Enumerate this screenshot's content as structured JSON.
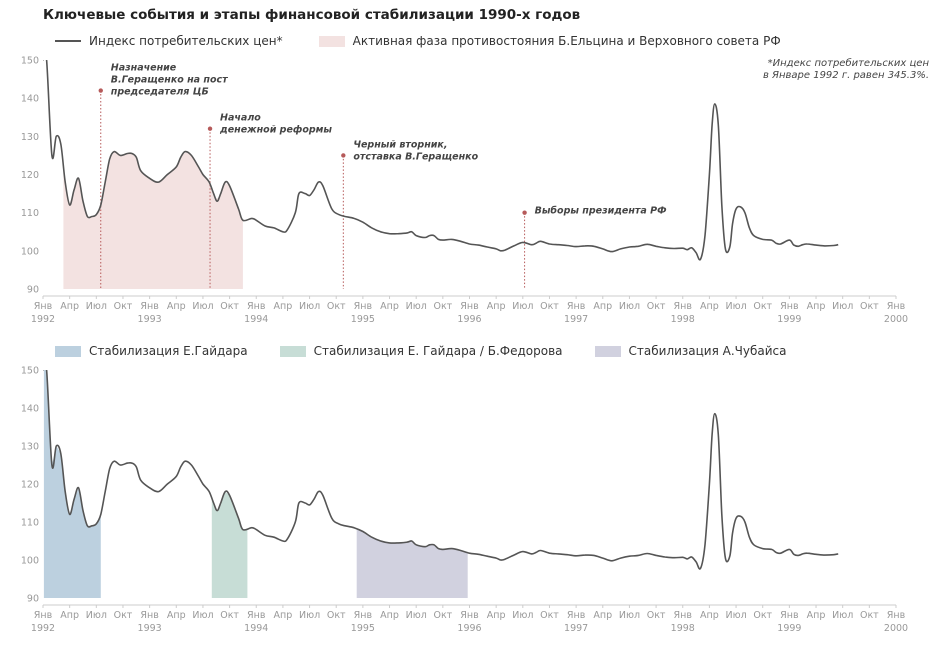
{
  "title": "Ключевые события и этапы финансовой стабилизации 1990-х годов",
  "footnote": [
    "*Индекс потребительских цен",
    "в Январе 1992 г. равен 345.3%."
  ],
  "colors": {
    "line": "#555555",
    "confrontation": "#f3e2e1",
    "gaidar": "#bcd0df",
    "gaidar_fedorov": "#c7ddd6",
    "chubais": "#d1d1df",
    "marker": "#b65a5a",
    "axis": "#cccccc"
  },
  "chart_data": [
    {
      "type": "line",
      "legend": [
        {
          "kind": "line",
          "label": "Индекс потребительских цен*",
          "color": "#555555"
        },
        {
          "kind": "area",
          "label": "Активная фаза противостояния Б.Ельцина и Верховного совета РФ",
          "color": "#f3e2e1"
        }
      ],
      "ylim": [
        90,
        150
      ],
      "yticks": [
        90,
        100,
        110,
        120,
        130,
        140,
        150
      ],
      "shaded_periods": [
        {
          "label": "Активная фаза противостояния Б.Ельцина и Верховного совета РФ",
          "start": 2.3,
          "end": 22.5,
          "color": "#f3e2e1"
        }
      ],
      "annotations": [
        {
          "x": 6.5,
          "label": [
            "Назначение",
            "В.Геращенко на пост",
            "председателя ЦБ"
          ],
          "y": 142
        },
        {
          "x": 18.8,
          "label": [
            "Начало",
            "денежной реформы"
          ],
          "y": 132
        },
        {
          "x": 33.8,
          "label": [
            "Черный вторник,",
            "отставка В.Геращенко"
          ],
          "y": 125
        },
        {
          "x": 54.2,
          "label": [
            "Выборы президента РФ"
          ],
          "y": 110
        }
      ]
    },
    {
      "type": "line",
      "legend": [
        {
          "kind": "area",
          "label": "Стабилизация Е.Гайдара",
          "color": "#bcd0df"
        },
        {
          "kind": "area",
          "label": "Стабилизация Е. Гайдара / Б.Федорова",
          "color": "#c7ddd6"
        },
        {
          "kind": "area",
          "label": "Стабилизация А.Чубайса",
          "color": "#d1d1df"
        }
      ],
      "ylim": [
        90,
        150
      ],
      "yticks": [
        90,
        100,
        110,
        120,
        130,
        140,
        150
      ],
      "shaded_periods": [
        {
          "label": "Стабилизация Е.Гайдара",
          "start": 0.1,
          "end": 6.5,
          "color": "#bcd0df"
        },
        {
          "label": "Стабилизация Е. Гайдара / Б.Федорова",
          "start": 19.0,
          "end": 23.0,
          "color": "#c7ddd6"
        },
        {
          "label": "Стабилизация А.Чубайса",
          "start": 35.3,
          "end": 47.8,
          "color": "#d1d1df"
        }
      ]
    }
  ],
  "series": {
    "name": "Индекс потребительских цен*",
    "x_unit": "months since Jan 1992",
    "values": [
      [
        0,
        345.3
      ],
      [
        0.4,
        150
      ],
      [
        1,
        125
      ],
      [
        1.5,
        130
      ],
      [
        2,
        128
      ],
      [
        2.5,
        118
      ],
      [
        3,
        112
      ],
      [
        3.5,
        116
      ],
      [
        4,
        119
      ],
      [
        4.5,
        113
      ],
      [
        5,
        109
      ],
      [
        5.5,
        109
      ],
      [
        6,
        109.5
      ],
      [
        6.5,
        112
      ],
      [
        7,
        118
      ],
      [
        7.5,
        124
      ],
      [
        8,
        126
      ],
      [
        8.7,
        125
      ],
      [
        9.5,
        125.5
      ],
      [
        10,
        125.5
      ],
      [
        10.5,
        124.5
      ],
      [
        11,
        121
      ],
      [
        12,
        119
      ],
      [
        13,
        118
      ],
      [
        14,
        120
      ],
      [
        15,
        122
      ],
      [
        15.5,
        124.5
      ],
      [
        16,
        126
      ],
      [
        16.7,
        125
      ],
      [
        17.5,
        122
      ],
      [
        18,
        120
      ],
      [
        18.7,
        118
      ],
      [
        19.2,
        115
      ],
      [
        19.6,
        113
      ],
      [
        20,
        115
      ],
      [
        20.5,
        118
      ],
      [
        21,
        117
      ],
      [
        22,
        111
      ],
      [
        22.5,
        108
      ],
      [
        23.5,
        108.5
      ],
      [
        24,
        108
      ],
      [
        25,
        106.5
      ],
      [
        26,
        106
      ],
      [
        27,
        105
      ],
      [
        27.5,
        105.5
      ],
      [
        28.4,
        110
      ],
      [
        28.8,
        115
      ],
      [
        29.5,
        115
      ],
      [
        30,
        114.5
      ],
      [
        30.5,
        116
      ],
      [
        31,
        118
      ],
      [
        31.5,
        117
      ],
      [
        32.5,
        111
      ],
      [
        33.3,
        109.5
      ],
      [
        34,
        109
      ],
      [
        35,
        108.5
      ],
      [
        36,
        107.5
      ],
      [
        37,
        106
      ],
      [
        38,
        105
      ],
      [
        39,
        104.5
      ],
      [
        40,
        104.5
      ],
      [
        41,
        104.7
      ],
      [
        41.5,
        105
      ],
      [
        42,
        104
      ],
      [
        43,
        103.5
      ],
      [
        43.5,
        104
      ],
      [
        44,
        104
      ],
      [
        44.5,
        103
      ],
      [
        45,
        102.8
      ],
      [
        46,
        103
      ],
      [
        47,
        102.5
      ],
      [
        48,
        101.8
      ],
      [
        49,
        101.5
      ],
      [
        50,
        101
      ],
      [
        51,
        100.5
      ],
      [
        51.5,
        100
      ],
      [
        52,
        100.2
      ],
      [
        53,
        101.3
      ],
      [
        54,
        102.2
      ],
      [
        55,
        101.6
      ],
      [
        55.5,
        102
      ],
      [
        56,
        102.5
      ],
      [
        57,
        101.8
      ],
      [
        58,
        101.6
      ],
      [
        59,
        101.4
      ],
      [
        60,
        101.1
      ],
      [
        61,
        101.3
      ],
      [
        62,
        101.2
      ],
      [
        63,
        100.5
      ],
      [
        64,
        99.8
      ],
      [
        65,
        100.5
      ],
      [
        66,
        101
      ],
      [
        67,
        101.2
      ],
      [
        68,
        101.7
      ],
      [
        69,
        101.2
      ],
      [
        70,
        100.8
      ],
      [
        71,
        100.6
      ],
      [
        72,
        100.7
      ],
      [
        72.5,
        100.3
      ],
      [
        73,
        100.8
      ],
      [
        73.5,
        99.5
      ],
      [
        74,
        97.8
      ],
      [
        74.5,
        104
      ],
      [
        75,
        120
      ],
      [
        75.3,
        133
      ],
      [
        75.6,
        138.5
      ],
      [
        76,
        133
      ],
      [
        76.4,
        112
      ],
      [
        76.8,
        100.5
      ],
      [
        77.3,
        101
      ],
      [
        77.6,
        107
      ],
      [
        78,
        111
      ],
      [
        78.5,
        111.5
      ],
      [
        79,
        110
      ],
      [
        79.5,
        106
      ],
      [
        80,
        104
      ],
      [
        81,
        103
      ],
      [
        82,
        102.8
      ],
      [
        82.5,
        102
      ],
      [
        83,
        101.8
      ],
      [
        84,
        102.8
      ],
      [
        84.5,
        101.5
      ],
      [
        85,
        101.2
      ],
      [
        85.5,
        101.6
      ],
      [
        86,
        101.8
      ],
      [
        87,
        101.5
      ],
      [
        88,
        101.3
      ],
      [
        89,
        101.4
      ],
      [
        89.5,
        101.6
      ]
    ]
  },
  "x_axis": {
    "month_labels": [
      "Янв",
      "Апр",
      "Июл",
      "Окт"
    ],
    "years": [
      "1992",
      "1993",
      "1994",
      "1995",
      "1996",
      "1997",
      "1998",
      "1999",
      "2000"
    ],
    "last_label": "Янв",
    "domain": [
      0,
      96
    ]
  }
}
